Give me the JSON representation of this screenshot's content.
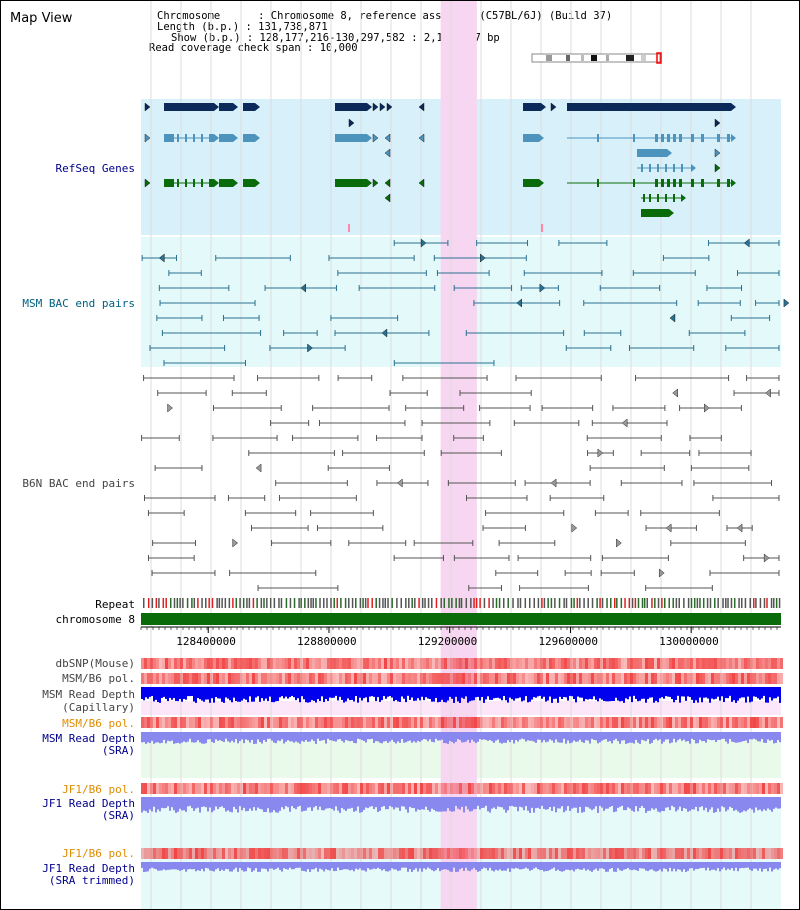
{
  "view_title": "Map View",
  "info": {
    "chromosome_key": "Chromosome",
    "chromosome_val": "Chromosome 8, reference assembly (C57BL/6J) (Build 37)",
    "length_key": "Length (b.p.)",
    "length_val": "131,738,871",
    "show_key": "Show (b.p.)",
    "show_val": "128,177,216-130,297,582 : 2,120,367 bp",
    "coverage_key": "Read coverage check span",
    "coverage_val": "10,000"
  },
  "tracks": {
    "refseq": "RefSeq Genes",
    "msm_bac": "MSM BAC end pairs",
    "b6n_bac": "B6N BAC end pairs",
    "repeat": "Repeat",
    "chromosome": "chromosome 8",
    "dbsnp": "dbSNP(Mouse)",
    "msm_b6_pol_1": "MSM/B6 pol.",
    "msm_depth_cap_1": "MSM Read Depth",
    "msm_depth_cap_2": "(Capillary)",
    "msm_b6_pol_2": "MSM/B6 pol.",
    "msm_depth_sra_1": "MSM Read Depth",
    "msm_depth_sra_2": "(SRA)",
    "jf1_b6_pol_1": "JF1/B6 pol.",
    "jf1_depth_sra_1": "JF1 Read Depth",
    "jf1_depth_sra_2": "(SRA)",
    "jf1_b6_pol_2": "JF1/B6 pol.",
    "jf1_depth_trim_1": "JF1 Read Depth",
    "jf1_depth_trim_2": "(SRA trimmed)"
  },
  "axis": {
    "start_bp": 128177216,
    "end_bp": 130297582,
    "ticks": [
      "128400000",
      "128800000",
      "129200000",
      "129600000",
      "130000000"
    ],
    "tick_values": [
      128400000,
      128800000,
      129200000,
      129600000,
      130000000
    ]
  },
  "highlight_range_bp": [
    129170000,
    129290000
  ],
  "colors": {
    "refseq_bg": "#d8f0fa",
    "msm_bg": "#e4fafa",
    "b6n_bg": "#ffffff",
    "highlight": "#f6d6f0",
    "gene_navy": "#0b2a5a",
    "gene_steel": "#4d94bd",
    "gene_green": "#0a6b0a",
    "bac_teal": "#2a7090",
    "bac_gray": "#555555",
    "chrom_green": "#0a6b0a",
    "depth_blue": "#0000ee",
    "depth_lavender": "#8888ee",
    "pol_red": "#ff7070"
  }
}
